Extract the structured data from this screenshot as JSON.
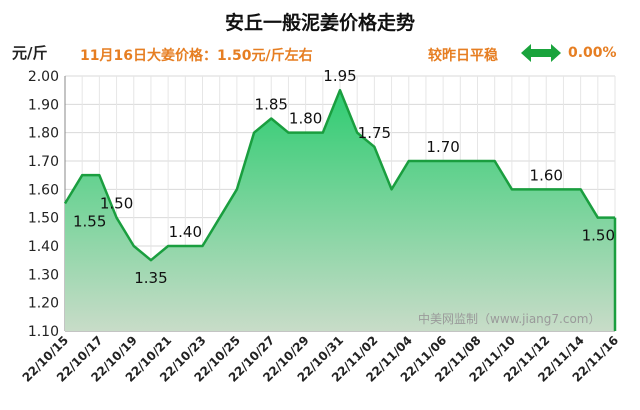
{
  "title": "安丘一般泥姜价格走势",
  "unit": "元/斤",
  "price_note": "11月16日大姜价格：1.50元/斤左右",
  "compare_label": "较昨日平稳",
  "change": "0.00%",
  "icon": "double-arrow-icon",
  "watermark": "中美网监制（www.jiang7.com）",
  "colors": {
    "area_top": "#2ecc71",
    "area_bottom": "#c8dcc8",
    "line": "#1a9e3f",
    "accent": "#e67e22",
    "arrow": "#1aa33c"
  },
  "chart_data": {
    "type": "area",
    "title": "安丘一般泥姜价格走势",
    "ylabel": "元/斤",
    "xlabel": "",
    "ylim": [
      1.1,
      2.0
    ],
    "yticks": [
      "1.10",
      "1.20",
      "1.30",
      "1.40",
      "1.50",
      "1.60",
      "1.70",
      "1.80",
      "1.90",
      "2.00"
    ],
    "x": [
      "22/10/15",
      "22/10/16",
      "22/10/17",
      "22/10/18",
      "22/10/19",
      "22/10/20",
      "22/10/21",
      "22/10/22",
      "22/10/23",
      "22/10/24",
      "22/10/25",
      "22/10/26",
      "22/10/27",
      "22/10/28",
      "22/10/29",
      "22/10/30",
      "22/10/31",
      "22/11/01",
      "22/11/02",
      "22/11/03",
      "22/11/04",
      "22/11/05",
      "22/11/06",
      "22/11/07",
      "22/11/08",
      "22/11/09",
      "22/11/10",
      "22/11/11",
      "22/11/12",
      "22/11/13",
      "22/11/14",
      "22/11/15",
      "22/11/16"
    ],
    "xtick_labels": [
      "22/10/15",
      "22/10/17",
      "22/10/19",
      "22/10/21",
      "22/10/23",
      "22/10/25",
      "22/10/27",
      "22/10/29",
      "22/10/31",
      "22/11/02",
      "22/11/04",
      "22/11/06",
      "22/11/08",
      "22/11/10",
      "22/11/12",
      "22/11/14",
      "22/11/16"
    ],
    "values": [
      1.55,
      1.65,
      1.65,
      1.5,
      1.4,
      1.35,
      1.4,
      1.4,
      1.4,
      1.5,
      1.6,
      1.8,
      1.85,
      1.8,
      1.8,
      1.8,
      1.95,
      1.8,
      1.75,
      1.6,
      1.7,
      1.7,
      1.7,
      1.7,
      1.7,
      1.7,
      1.6,
      1.6,
      1.6,
      1.6,
      1.6,
      1.5,
      1.5
    ],
    "data_labels": [
      {
        "i": 0,
        "text": "1.55",
        "pos": "below"
      },
      {
        "i": 3,
        "text": "1.50",
        "pos": "above"
      },
      {
        "i": 5,
        "text": "1.35",
        "pos": "below"
      },
      {
        "i": 7,
        "text": "1.40",
        "pos": "above"
      },
      {
        "i": 12,
        "text": "1.85",
        "pos": "above"
      },
      {
        "i": 14,
        "text": "1.80",
        "pos": "above"
      },
      {
        "i": 16,
        "text": "1.95",
        "pos": "above"
      },
      {
        "i": 18,
        "text": "1.75",
        "pos": "above"
      },
      {
        "i": 22,
        "text": "1.70",
        "pos": "above"
      },
      {
        "i": 28,
        "text": "1.60",
        "pos": "above"
      },
      {
        "i": 32,
        "text": "1.50",
        "pos": "below"
      }
    ],
    "grid": true,
    "legend": "none"
  }
}
